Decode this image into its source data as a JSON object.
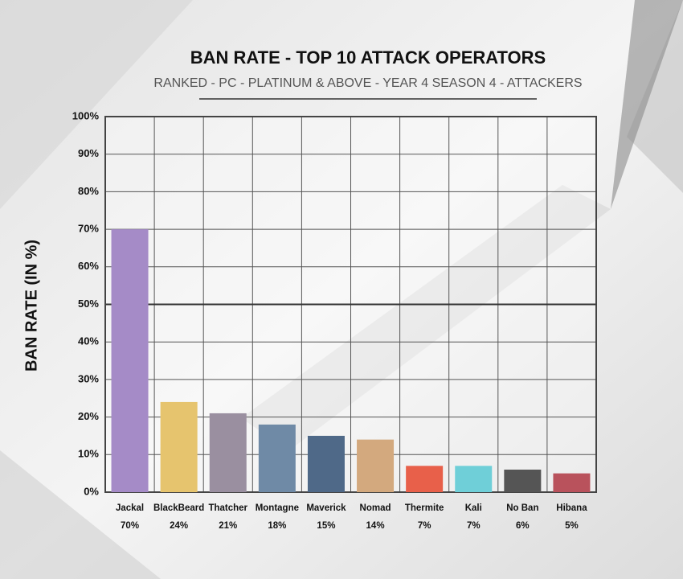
{
  "chart_data": {
    "type": "bar",
    "title": "BAN RATE - TOP 10 ATTACK OPERATORS",
    "subtitle": "RANKED - PC - PLATINUM & ABOVE - YEAR 4 SEASON 4 - ATTACKERS",
    "y_label": "BAN RATE (IN %)",
    "categories": [
      "Jackal",
      "BlackBeard",
      "Thatcher",
      "Montagne",
      "Maverick",
      "Nomad",
      "Thermite",
      "Kali",
      "No Ban",
      "Hibana"
    ],
    "values": [
      70,
      24,
      21,
      18,
      15,
      14,
      7,
      7,
      6,
      5
    ],
    "value_labels": [
      "70%",
      "24%",
      "21%",
      "18%",
      "15%",
      "14%",
      "7%",
      "7%",
      "6%",
      "5%"
    ],
    "colors": [
      "#a58bc7",
      "#e6c46e",
      "#9a8fa0",
      "#6f8aa6",
      "#4f6988",
      "#d3a97e",
      "#e8604a",
      "#6fcfd8",
      "#555555",
      "#b9525c"
    ],
    "ylim": [
      0,
      100
    ],
    "yticks": [
      {
        "value": 0,
        "label": "0%"
      },
      {
        "value": 10,
        "label": "10%"
      },
      {
        "value": 20,
        "label": "20%"
      },
      {
        "value": 30,
        "label": "30%"
      },
      {
        "value": 40,
        "label": "40%"
      },
      {
        "value": 50,
        "label": "50%"
      },
      {
        "value": 60,
        "label": "60%"
      },
      {
        "value": 70,
        "label": "70%"
      },
      {
        "value": 80,
        "label": "80%"
      },
      {
        "value": 90,
        "label": "90%"
      },
      {
        "value": 100,
        "label": "100%"
      }
    ],
    "grid": true
  }
}
